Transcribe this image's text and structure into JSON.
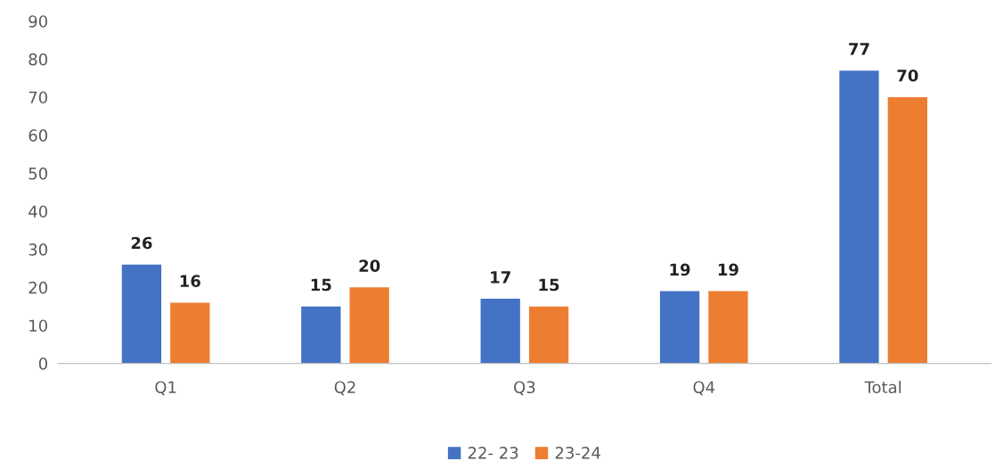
{
  "chart_data": {
    "type": "bar",
    "categories": [
      "Q1",
      "Q2",
      "Q3",
      "Q4",
      "Total"
    ],
    "series": [
      {
        "name": "22- 23",
        "color": "#4472c4",
        "values": [
          26,
          15,
          17,
          19,
          77
        ]
      },
      {
        "name": "23-24",
        "color": "#ed7d31",
        "values": [
          16,
          20,
          15,
          19,
          70
        ]
      }
    ],
    "ylim": [
      0,
      90
    ],
    "yticks": [
      0,
      10,
      20,
      30,
      40,
      50,
      60,
      70,
      80,
      90
    ],
    "grid": false,
    "legend": "bottom",
    "data_labels": true
  }
}
